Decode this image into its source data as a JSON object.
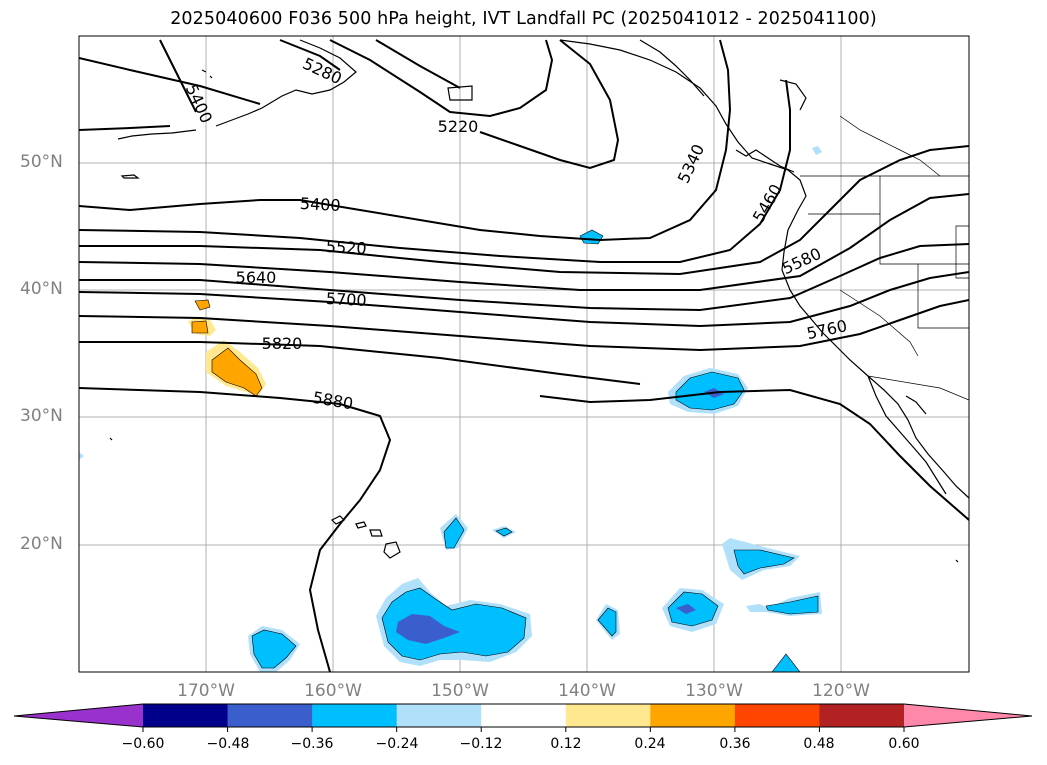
{
  "title": "2025040600 F036 500 hPa height, IVT Landfall PC (2025041012 - 2025041100)",
  "lat_labels": [
    "50°N",
    "40°N",
    "30°N",
    "20°N"
  ],
  "lon_labels": [
    "170°W",
    "160°W",
    "150°W",
    "140°W",
    "130°W",
    "120°W"
  ],
  "contour_labels": [
    "5280",
    "5400",
    "5220",
    "5340",
    "5460",
    "5400",
    "5520",
    "5640",
    "5700",
    "5580",
    "5760",
    "5820",
    "5880"
  ],
  "colorbar": {
    "ticks": [
      "−0.60",
      "−0.48",
      "−0.36",
      "−0.24",
      "−0.12",
      "0.12",
      "0.24",
      "0.36",
      "0.48",
      "0.60"
    ],
    "colors": [
      "#9932cc",
      "#00008b",
      "#3a5fcd",
      "#00bfff",
      "#b0e0fa",
      "#ffffff",
      "#ffe88f",
      "#ffa500",
      "#ff4500",
      "#b22222",
      "#ff88aa"
    ]
  }
}
